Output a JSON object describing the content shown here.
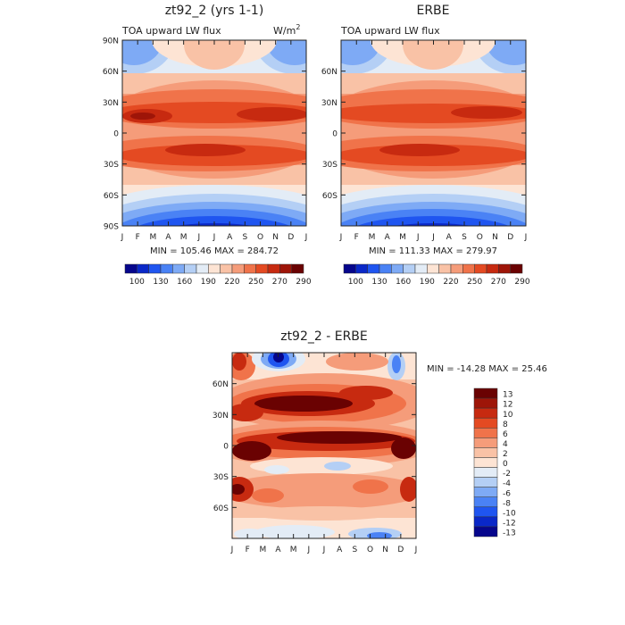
{
  "chart_data": [
    {
      "type": "heatmap",
      "title": "zt92_2 (yrs 1-1)",
      "subtitle": "TOA upward LW flux",
      "units_label": "W/m",
      "units_exp": "2",
      "x_tick_labels": [
        "J",
        "F",
        "M",
        "A",
        "M",
        "J",
        "J",
        "A",
        "S",
        "O",
        "N",
        "D",
        "J"
      ],
      "y_tick_labels": [
        "90N",
        "60N",
        "30N",
        "0",
        "30S",
        "60S",
        "90S"
      ],
      "y_tick_values": [
        90,
        60,
        30,
        0,
        -30,
        -60,
        -90
      ],
      "ylim": [
        -90,
        90
      ],
      "stats": "MIN = 105.46 MAX = 284.72",
      "min": 105.46,
      "max": 284.72,
      "colorbar_labels": [
        "100",
        "130",
        "160",
        "190",
        "220",
        "250",
        "270",
        "290"
      ]
    },
    {
      "type": "heatmap",
      "title": "ERBE",
      "subtitle": "TOA upward LW flux",
      "x_tick_labels": [
        "J",
        "F",
        "M",
        "A",
        "M",
        "J",
        "J",
        "A",
        "S",
        "O",
        "N",
        "D",
        "J"
      ],
      "y_tick_labels": [
        "60N",
        "30N",
        "0",
        "30S",
        "60S"
      ],
      "y_tick_values": [
        60,
        30,
        0,
        -30,
        -60
      ],
      "ylim": [
        -90,
        90
      ],
      "stats": "MIN = 111.33 MAX = 279.97",
      "min": 111.33,
      "max": 279.97,
      "colorbar_labels": [
        "100",
        "130",
        "160",
        "190",
        "220",
        "250",
        "270",
        "290"
      ]
    },
    {
      "type": "heatmap",
      "title": "zt92_2 - ERBE",
      "x_tick_labels": [
        "J",
        "F",
        "M",
        "A",
        "M",
        "J",
        "J",
        "A",
        "S",
        "O",
        "N",
        "D",
        "J"
      ],
      "y_tick_labels": [
        "60N",
        "30N",
        "0",
        "30S",
        "60S"
      ],
      "y_tick_values": [
        60,
        30,
        0,
        -30,
        -60
      ],
      "ylim": [
        -90,
        90
      ],
      "stats": "MIN = -14.28 MAX = 25.46",
      "min": -14.28,
      "max": 25.46,
      "colorbar_labels": [
        "13",
        "12",
        "10",
        "8",
        "6",
        "4",
        "2",
        "0",
        "-2",
        "-4",
        "-6",
        "-8",
        "-10",
        "-12",
        "-13"
      ]
    }
  ],
  "colors": {
    "abs_scale": [
      "#06068c",
      "#0a28c8",
      "#1f55f0",
      "#4a82f5",
      "#7eaaf5",
      "#b4cff5",
      "#e3ecf6",
      "#fde4d4",
      "#f9c2a6",
      "#f59c7a",
      "#f0734a",
      "#e44a22",
      "#c72a10",
      "#9e1508",
      "#6a0202"
    ],
    "diff_scale": [
      "#6a0202",
      "#9e1508",
      "#c72a10",
      "#e44a22",
      "#f0734a",
      "#f59c7a",
      "#f9c2a6",
      "#fde4d4",
      "#e3ecf6",
      "#b4cff5",
      "#7eaaf5",
      "#4a82f5",
      "#1f55f0",
      "#0a28c8",
      "#06068c"
    ]
  }
}
